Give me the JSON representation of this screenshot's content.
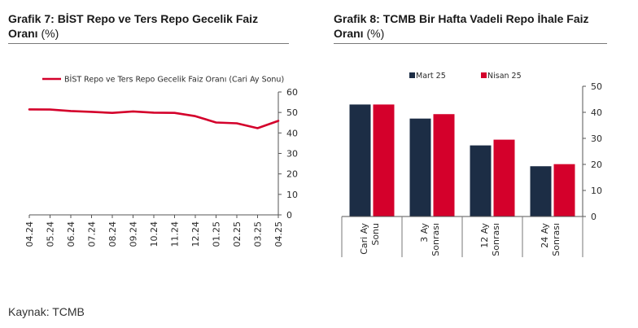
{
  "chart_data": [
    {
      "type": "line",
      "title": "Grafik 7:  BİST Repo ve Ters Repo Gecelik Faiz Oranı",
      "title_unit": "(%)",
      "categories": [
        "04.24",
        "05.24",
        "06.24",
        "07.24",
        "08.24",
        "09.24",
        "10.24",
        "11.24",
        "12.24",
        "01.25",
        "02.25",
        "03.25",
        "04.25"
      ],
      "series": [
        {
          "name": "BİST Repo ve Ters Repo Gecelik Faiz Oranı (Cari Ay Sonu)",
          "color": "#d4002b",
          "values": [
            51.5,
            51.4,
            50.7,
            50.3,
            49.8,
            50.5,
            49.9,
            49.8,
            48.2,
            45.1,
            44.7,
            42.3,
            45.9
          ]
        }
      ],
      "ylim": [
        0,
        60
      ],
      "yticks": [
        0,
        10,
        20,
        30,
        40,
        50,
        60
      ],
      "y_axis_side": "right",
      "legend": "top",
      "grid": false
    },
    {
      "type": "bar",
      "title": "Grafik 8: TCMB Bir Hafta Vadeli Repo İhale Faiz Oranı",
      "title_unit": "(%)",
      "categories": [
        [
          "Cari Ay",
          "Sonu"
        ],
        [
          "3 Ay",
          "Sonrası"
        ],
        [
          "12 Ay",
          "Sonrası"
        ],
        [
          "24 Ay",
          "Sonrası"
        ]
      ],
      "series": [
        {
          "name": "Mart 25",
          "color": "#1c2d45",
          "values": [
            43.0,
            37.6,
            27.3,
            19.3
          ]
        },
        {
          "name": "Nisan 25",
          "color": "#d4002b",
          "values": [
            43.0,
            39.3,
            29.5,
            20.1
          ]
        }
      ],
      "ylim": [
        0,
        50
      ],
      "yticks": [
        0,
        10,
        20,
        30,
        40,
        50
      ],
      "y_axis_side": "right",
      "legend": "top",
      "grid": false
    }
  ],
  "source": "Kaynak: TCMB"
}
